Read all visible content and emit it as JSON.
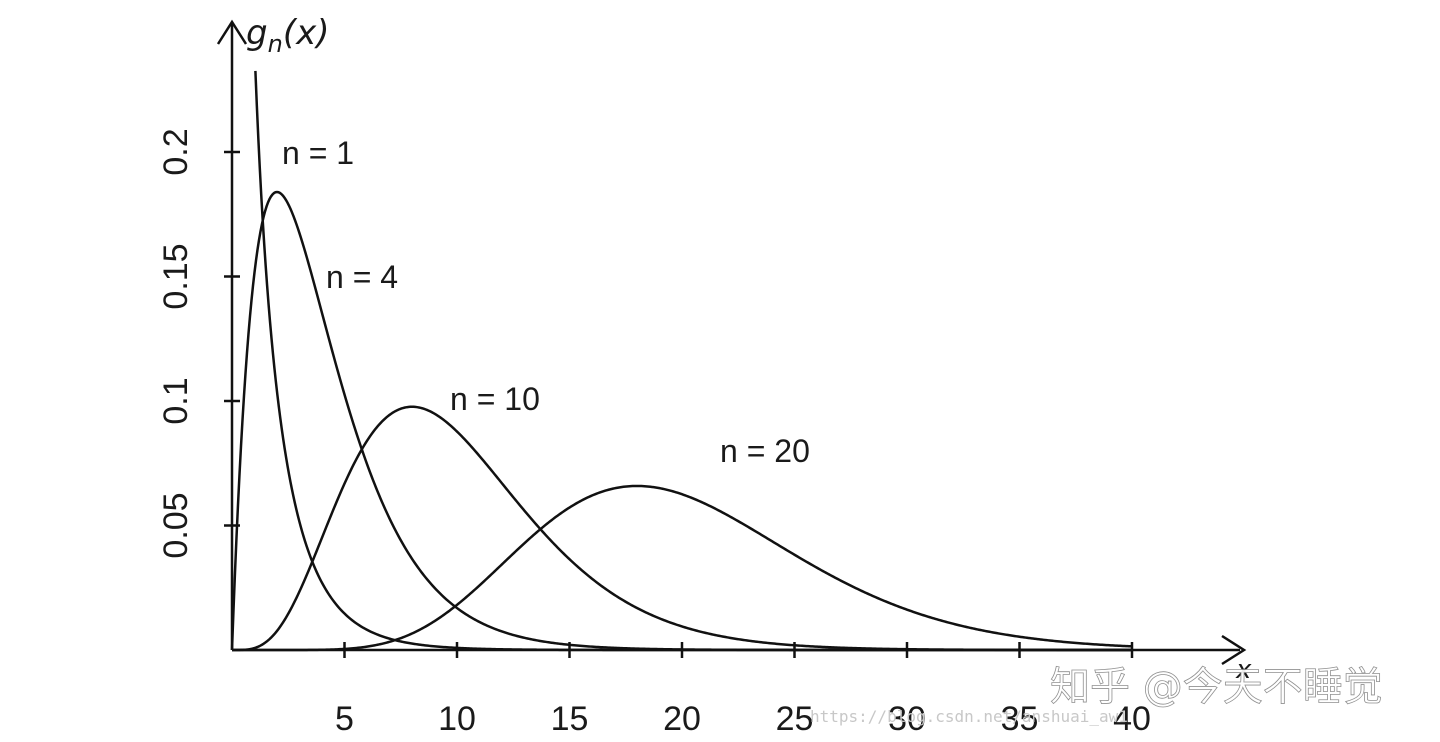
{
  "chart_data": {
    "type": "line",
    "title": "",
    "ylabel": "g_n(x)",
    "ylabel_parts": {
      "main": "g",
      "sub": "n",
      "arg": "(x)"
    },
    "xlabel": "x",
    "xlim": [
      0,
      40
    ],
    "ylim": [
      0,
      0.2
    ],
    "x_ticks": [
      5,
      10,
      15,
      20,
      25,
      30,
      35,
      40
    ],
    "x_tick_labels": [
      "5",
      "10",
      "15",
      "20",
      "25",
      "30",
      "35",
      "40"
    ],
    "y_ticks": [
      0.05,
      0.1,
      0.15,
      0.2
    ],
    "y_tick_labels": [
      "0.05",
      "0.1",
      "0.15",
      "0.2"
    ],
    "grid": false,
    "series": [
      {
        "name": "n = 1",
        "n": 1
      },
      {
        "name": "n = 4",
        "n": 4
      },
      {
        "name": "n = 10",
        "n": 10
      },
      {
        "name": "n = 20",
        "n": 20
      }
    ]
  },
  "watermark": "知乎 @今天不睡觉",
  "url_watermark": "https://blog.csdn.net/anshuai_aw1"
}
